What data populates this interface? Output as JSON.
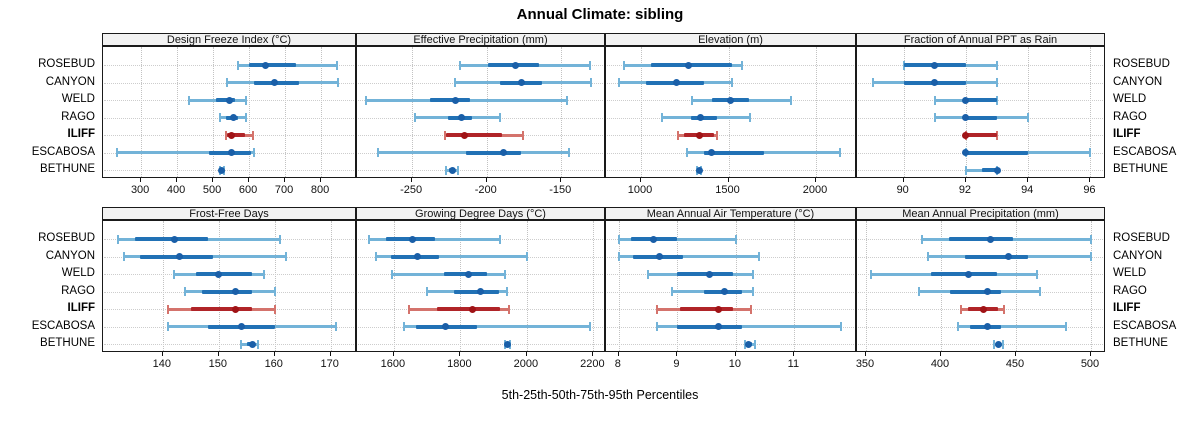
{
  "title": "Annual Climate: sibling",
  "xlabel": "5th-25th-50th-75th-95th Percentiles",
  "sites": [
    "ROSEBUD",
    "CANYON",
    "WELD",
    "RAGO",
    "ILIFF",
    "ESCABOSA",
    "BETHUNE"
  ],
  "highlighted_site": "ILIFF",
  "colors": {
    "blue_light": "#73B3D8",
    "blue_dark": "#2171B5",
    "blue_dot": "#1A5FA8",
    "red_light": "#D4736C",
    "red_dark": "#B02428",
    "red_dot": "#A01316",
    "strip_bg": "#F2F2F2",
    "panel_border": "#1A1A1A",
    "grid": "#C2C2C2",
    "row_guide": "#CDCDCD"
  },
  "chart_data": {
    "type": "dot-whisker-trellis",
    "description": "Each row: light band = 5th-95th percentile with end caps, dark band = 25th-75th percentile, dot = 50th percentile",
    "percentile_labels": [
      "5th",
      "25th",
      "50th",
      "75th",
      "95th"
    ],
    "layout": {
      "rows": 2,
      "cols": 4,
      "legend": "none",
      "grid": "dotted"
    },
    "panels": [
      {
        "title": "Design Freeze Index (°C)",
        "row": 0,
        "col": 0,
        "domain": [
          194,
          900
        ],
        "ticks": [
          300,
          400,
          500,
          600,
          700,
          800
        ],
        "values": [
          [
            570,
            600,
            645,
            730,
            845
          ],
          [
            540,
            615,
            672,
            740,
            848
          ],
          [
            434,
            508,
            545,
            560,
            592
          ],
          [
            518,
            536,
            557,
            569,
            592
          ],
          [
            536,
            540,
            552,
            588,
            612
          ],
          [
            233,
            490,
            550,
            605,
            614
          ],
          [
            518,
            521,
            524,
            527,
            530
          ]
        ]
      },
      {
        "title": "Effective Precipitation (mm)",
        "row": 0,
        "col": 1,
        "domain": [
          -287,
          -120
        ],
        "ticks": [
          -250,
          -200,
          -150
        ],
        "values": [
          [
            -218,
            -199,
            -181,
            -165,
            -131
          ],
          [
            -221,
            -191,
            -177,
            -163,
            -130
          ],
          [
            -281,
            -238,
            -221,
            -211,
            -146
          ],
          [
            -248,
            -226,
            -217,
            -210,
            -191
          ],
          [
            -228,
            -227,
            -215,
            -190,
            -176
          ],
          [
            -273,
            -214,
            -189,
            -177,
            -145
          ],
          [
            -227,
            -225,
            -223,
            -221,
            -219
          ]
        ]
      },
      {
        "title": "Elevation (m)",
        "row": 0,
        "col": 2,
        "domain": [
          800,
          2234
        ],
        "ticks": [
          1000,
          1500,
          2000
        ],
        "values": [
          [
            905,
            1055,
            1270,
            1520,
            1575
          ],
          [
            875,
            1030,
            1200,
            1360,
            1520
          ],
          [
            1290,
            1405,
            1510,
            1615,
            1855
          ],
          [
            1120,
            1285,
            1340,
            1435,
            1620
          ],
          [
            1210,
            1245,
            1335,
            1415,
            1435
          ],
          [
            1265,
            1360,
            1400,
            1700,
            2135
          ],
          [
            1320,
            1328,
            1333,
            1338,
            1345
          ]
        ]
      },
      {
        "title": "Fraction of Annual PPT as Rain",
        "row": 0,
        "col": 3,
        "domain": [
          88.5,
          96.5
        ],
        "ticks": [
          90,
          92,
          94,
          96
        ],
        "values": [
          [
            90,
            90,
            91,
            92,
            93
          ],
          [
            89,
            90,
            91,
            92,
            93
          ],
          [
            91,
            92,
            92,
            93,
            93
          ],
          [
            91,
            92,
            92,
            93,
            94
          ],
          [
            92,
            92,
            92,
            93,
            93
          ],
          [
            92,
            92,
            92,
            94,
            96
          ],
          [
            92,
            92.5,
            93,
            93,
            93
          ]
        ]
      },
      {
        "title": "Frost-Free Days",
        "row": 1,
        "col": 0,
        "domain": [
          129.3,
          174.7
        ],
        "ticks": [
          140,
          150,
          160,
          170
        ],
        "values": [
          [
            132,
            135,
            142,
            148,
            161
          ],
          [
            133,
            136,
            143,
            149,
            162
          ],
          [
            142,
            146,
            150,
            156,
            158
          ],
          [
            144,
            147,
            153,
            156,
            160
          ],
          [
            141,
            145,
            153,
            156,
            160
          ],
          [
            141,
            148,
            154,
            160,
            171
          ],
          [
            154,
            155,
            156,
            156.5,
            157
          ]
        ]
      },
      {
        "title": "Growing Degree Days (°C)",
        "row": 1,
        "col": 1,
        "domain": [
          1489,
          2238
        ],
        "ticks": [
          1600,
          1800,
          2000,
          2200
        ],
        "values": [
          [
            1525,
            1575,
            1655,
            1725,
            1920
          ],
          [
            1545,
            1590,
            1670,
            1735,
            2000
          ],
          [
            1595,
            1750,
            1825,
            1880,
            1935
          ],
          [
            1700,
            1780,
            1860,
            1915,
            1940
          ],
          [
            1645,
            1730,
            1835,
            1920,
            1945
          ],
          [
            1630,
            1665,
            1755,
            1850,
            2190
          ],
          [
            1935,
            1940,
            1943,
            1947,
            1950
          ]
        ]
      },
      {
        "title": "Mean Annual Air Temperature (°C)",
        "row": 1,
        "col": 2,
        "domain": [
          7.78,
          12.07
        ],
        "ticks": [
          8,
          9,
          10,
          11
        ],
        "values": [
          [
            8.0,
            8.2,
            8.6,
            9.0,
            10.0
          ],
          [
            8.0,
            8.25,
            8.7,
            9.1,
            10.4
          ],
          [
            8.5,
            9.0,
            9.55,
            9.95,
            10.3
          ],
          [
            8.9,
            9.45,
            9.8,
            10.1,
            10.3
          ],
          [
            8.65,
            9.05,
            9.7,
            9.95,
            10.25
          ],
          [
            8.65,
            9.0,
            9.7,
            10.1,
            11.8
          ],
          [
            10.15,
            10.2,
            10.22,
            10.28,
            10.32
          ]
        ]
      },
      {
        "title": "Mean Annual Precipitation (mm)",
        "row": 1,
        "col": 3,
        "domain": [
          344,
          510
        ],
        "ticks": [
          350,
          400,
          450,
          500
        ],
        "values": [
          [
            387,
            405,
            433,
            448,
            500
          ],
          [
            391,
            416,
            445,
            458,
            500
          ],
          [
            353,
            393,
            418,
            437,
            464
          ],
          [
            385,
            406,
            431,
            440,
            466
          ],
          [
            413,
            418,
            428,
            438,
            442
          ],
          [
            411,
            419,
            431,
            440,
            483
          ],
          [
            435,
            437,
            438,
            439,
            441
          ]
        ]
      }
    ]
  }
}
